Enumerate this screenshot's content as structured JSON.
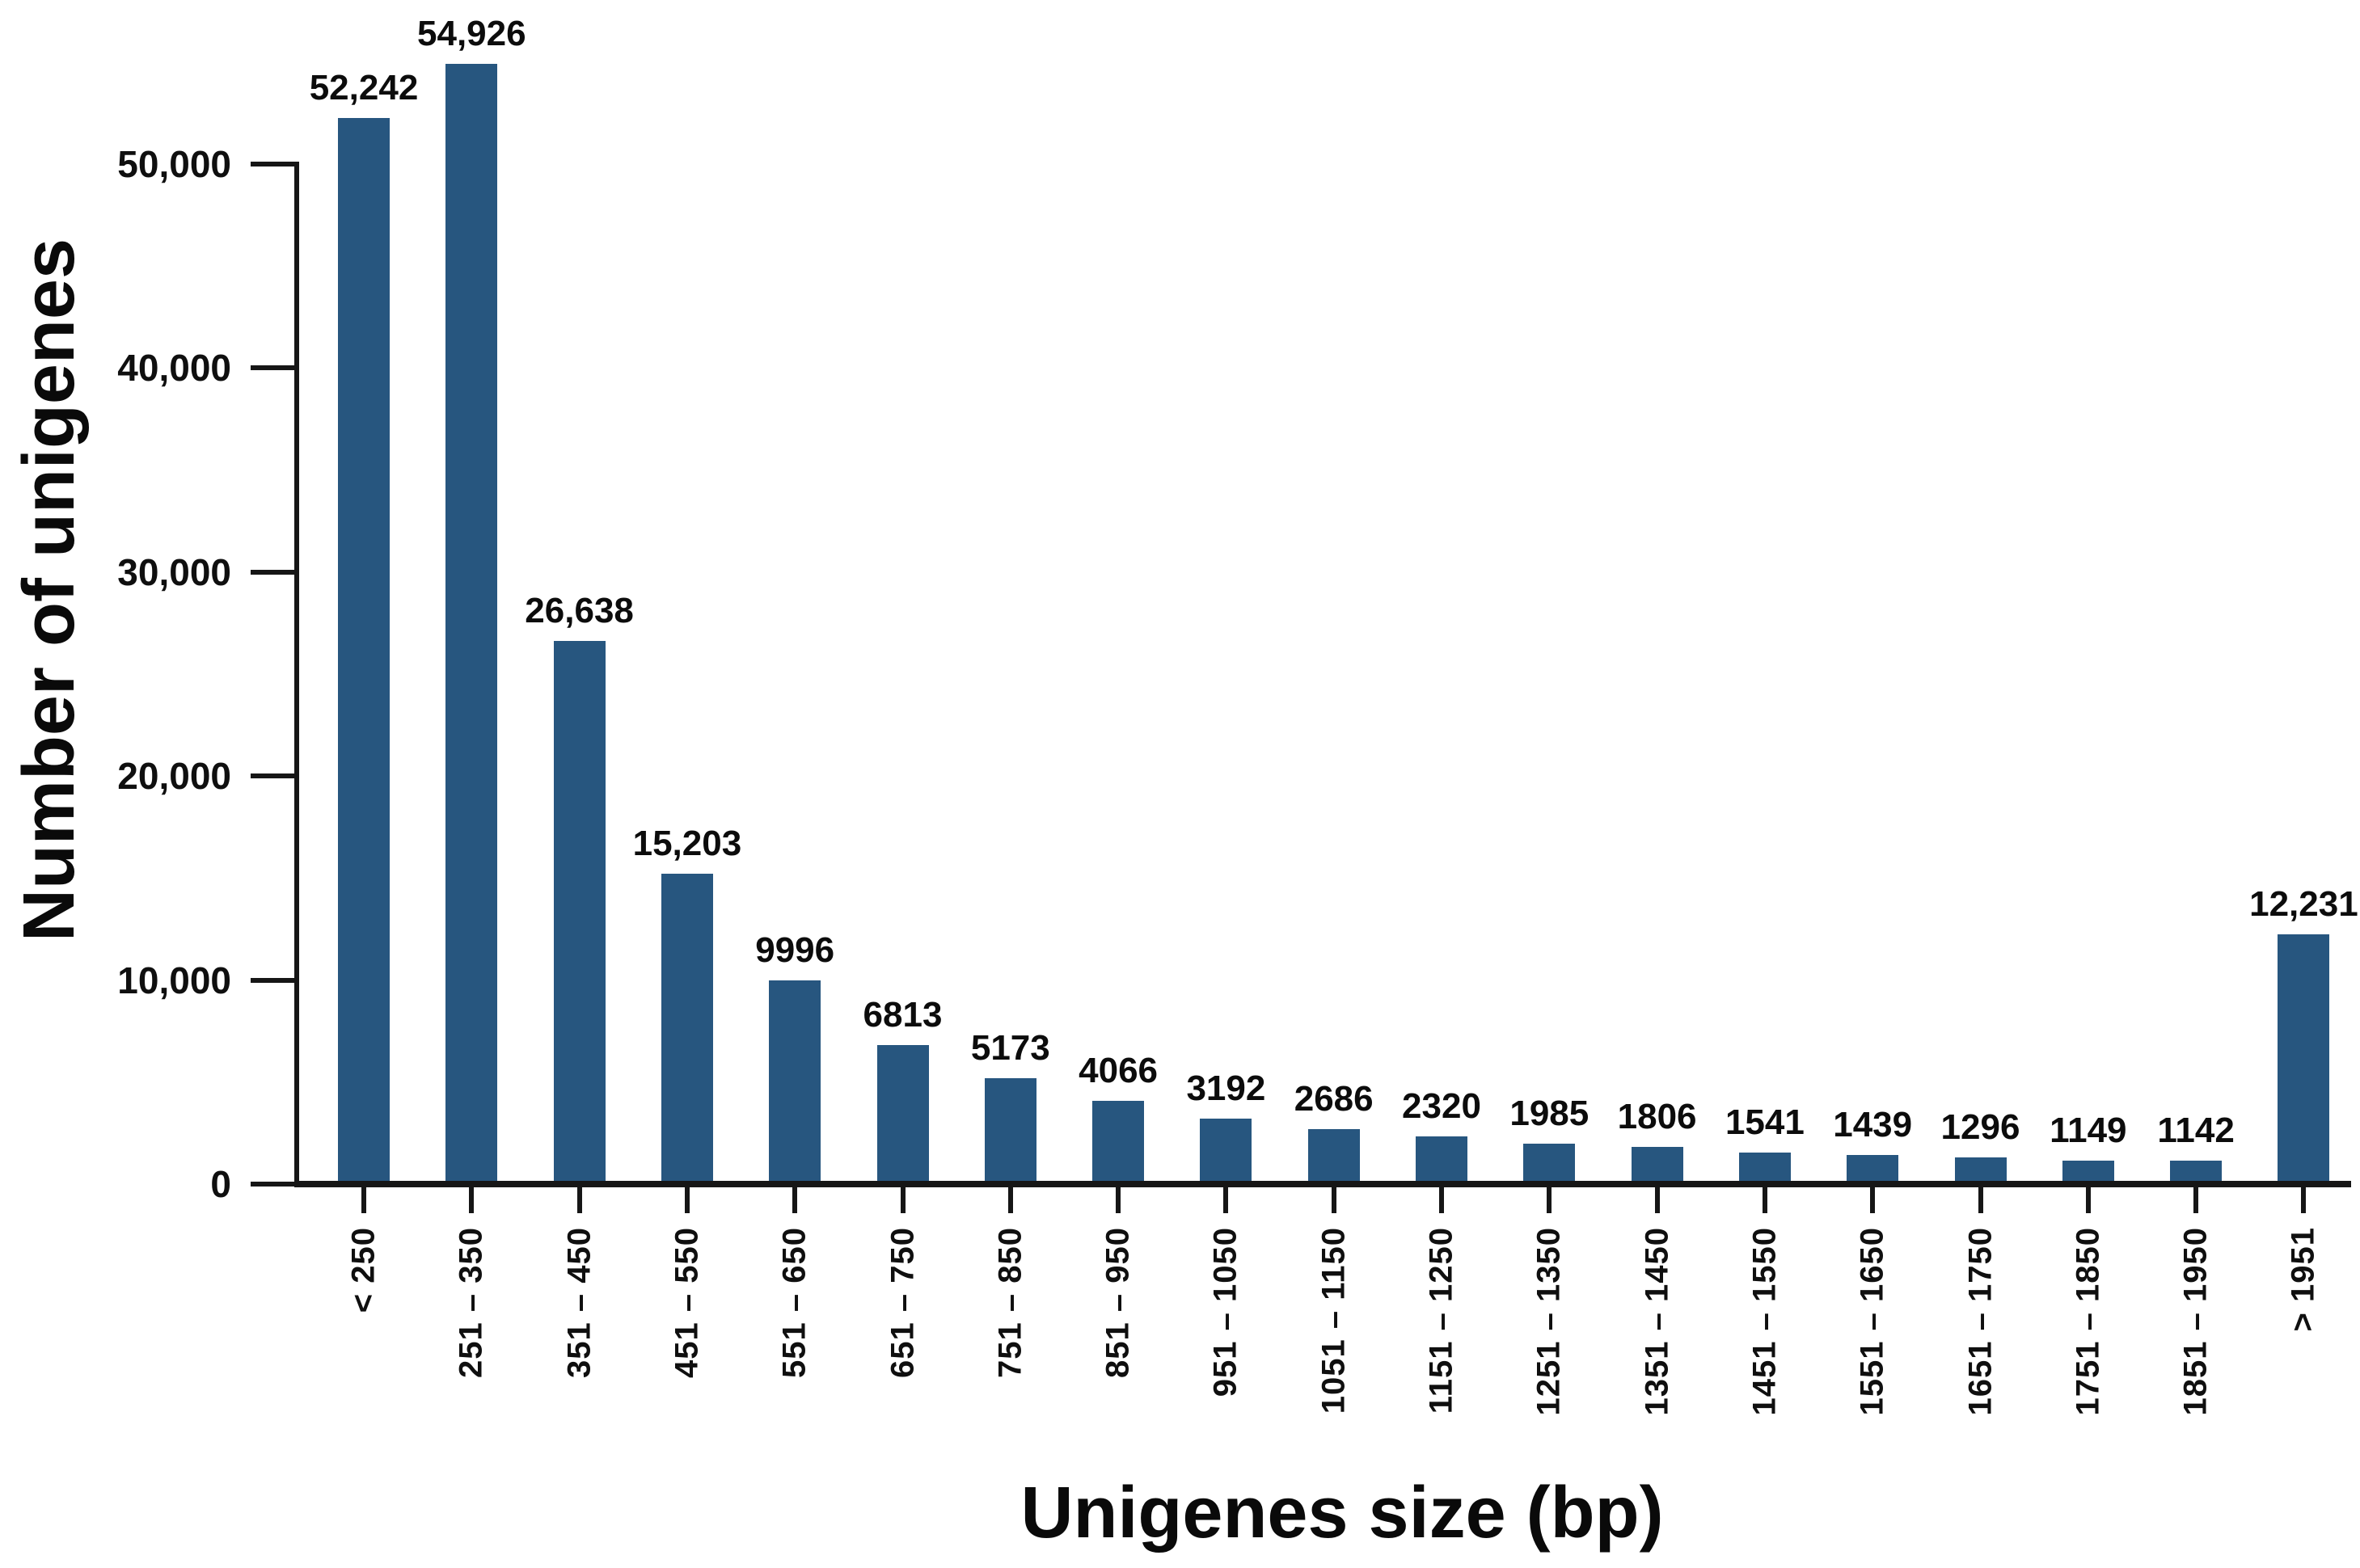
{
  "figure": {
    "background": "#ffffff"
  },
  "chart_data": {
    "type": "bar",
    "title": "",
    "xlabel": "Unigenes size (bp)",
    "ylabel": "Number of unigenes",
    "categories": [
      "< 250",
      "251 – 350",
      "351 – 450",
      "451 – 550",
      "551 – 650",
      "651 – 750",
      "751 – 850",
      "851 – 950",
      "951 – 1050",
      "1051 – 1150",
      "1151 – 1250",
      "1251 – 1350",
      "1351 – 1450",
      "1451 – 1550",
      "1551 – 1650",
      "1651 – 1750",
      "1751 – 1850",
      "1851 – 1950",
      "> 1951"
    ],
    "values": [
      52242,
      54926,
      26638,
      15203,
      9996,
      6813,
      5173,
      4066,
      3192,
      2686,
      2320,
      1985,
      1806,
      1541,
      1439,
      1296,
      1149,
      1142,
      12231
    ],
    "value_labels": [
      "52,242",
      "54,926",
      "26,638",
      "15,203",
      "9996",
      "6813",
      "5173",
      "4066",
      "3192",
      "2686",
      "2320",
      "1985",
      "1806",
      "1541",
      "1439",
      "1296",
      "1149",
      "1142",
      "12,231"
    ],
    "y_axis": {
      "tick_values": [
        0,
        10000,
        20000,
        30000,
        40000,
        50000
      ],
      "tick_labels": [
        "0",
        "10,000",
        "20,000",
        "30,000",
        "40,000",
        "50,000"
      ],
      "ylim": [
        0,
        50000
      ]
    },
    "grid": false,
    "legend_position": "none",
    "colors": {
      "bar": "#27567F",
      "axis": "#161616",
      "text": "#0f0f0f"
    }
  }
}
